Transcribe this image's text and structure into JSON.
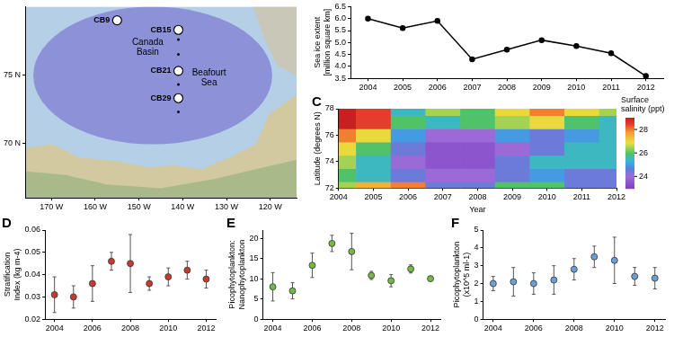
{
  "chart_data": [
    {
      "type": "map",
      "xlim": [
        -176,
        -114
      ],
      "ylim": [
        66,
        80
      ],
      "xticks": [
        {
          "value": -170,
          "label": "170 W"
        },
        {
          "value": -160,
          "label": "160 W"
        },
        {
          "value": -150,
          "label": "150 W"
        },
        {
          "value": -140,
          "label": "140 W"
        },
        {
          "value": -130,
          "label": "130 W"
        },
        {
          "value": -120,
          "label": "120 W"
        }
      ],
      "yticks": [
        {
          "value": 70,
          "label": "70 N"
        },
        {
          "value": 75,
          "label": "75 N"
        }
      ],
      "grid": false,
      "color": "#ffffff",
      "stations": [
        {
          "label": "CB9",
          "x": -155,
          "y": 79.0
        },
        {
          "label": "CB15",
          "x": -141,
          "y": 78.3
        },
        {
          "label": null,
          "x": -141,
          "y": 77.6
        },
        {
          "label": null,
          "x": -141,
          "y": 76.5
        },
        {
          "label": "CB21",
          "x": -141,
          "y": 75.3
        },
        {
          "label": null,
          "x": -141,
          "y": 74.3
        },
        {
          "label": "CB29",
          "x": -141,
          "y": 73.3
        },
        {
          "label": null,
          "x": -141,
          "y": 72.3
        }
      ],
      "annotations": [
        {
          "text": "Canada Basin",
          "x": -148,
          "y": 77.0
        },
        {
          "text": "Beafourt Sea",
          "x": -134,
          "y": 74.8
        }
      ]
    },
    {
      "type": "line",
      "x": [
        2004,
        2005,
        2006,
        2007,
        2008,
        2009,
        2010,
        2011,
        2012
      ],
      "values": [
        6.0,
        5.6,
        5.9,
        4.3,
        4.7,
        5.1,
        4.85,
        4.55,
        3.6
      ],
      "color": "#000000",
      "marker": "circle",
      "ylabel": "Sea ice extent [million square km]",
      "xlim": [
        2003.5,
        2012.5
      ],
      "xticks": [
        2004,
        2005,
        2006,
        2007,
        2008,
        2009,
        2010,
        2011,
        2012
      ],
      "ylim": [
        3.5,
        6.5
      ],
      "yticks": [
        3.5,
        {
          "value": 4,
          "label": "4.0"
        },
        4.5,
        {
          "value": 5,
          "label": "5.0"
        },
        5.5,
        {
          "value": 6,
          "label": "6.0"
        },
        6.5
      ],
      "grid": false
    },
    {
      "type": "heatmap",
      "panel_label": "C",
      "x": [
        2004,
        2005,
        2006,
        2007,
        2008,
        2009,
        2010,
        2011,
        2012
      ],
      "y": [
        72,
        73,
        74,
        75,
        76,
        77,
        78
      ],
      "cells": [
        [
          26.5,
          27.5,
          28.0,
          24.5,
          24.5,
          26.0,
          26.0,
          24.5,
          24.5
        ],
        [
          26.0,
          25.5,
          24.5,
          24.0,
          24.0,
          24.5,
          25.0,
          24.5,
          24.5
        ],
        [
          26.5,
          25.5,
          24.0,
          23.5,
          23.5,
          24.5,
          25.5,
          25.5,
          25.5
        ],
        [
          27.0,
          26.0,
          24.5,
          23.5,
          23.5,
          24.0,
          24.5,
          25.5,
          25.5
        ],
        [
          28.0,
          27.0,
          25.0,
          24.0,
          24.0,
          25.0,
          24.5,
          25.0,
          25.5
        ],
        [
          29.0,
          28.5,
          26.0,
          25.5,
          26.0,
          26.5,
          27.0,
          26.0,
          25.5
        ],
        [
          29.0,
          28.5,
          25.5,
          26.5,
          26.0,
          27.0,
          28.0,
          27.0,
          26.5
        ]
      ],
      "xlabel": "Year",
      "ylabel": "Latitude (degrees N)",
      "xlim": [
        2004,
        2012
      ],
      "xticks": [
        2004,
        2005,
        2006,
        2007,
        2008,
        2009,
        2010,
        2011,
        2012
      ],
      "ylim": [
        72,
        78
      ],
      "yticks": [
        72,
        74,
        76,
        78
      ],
      "grid": false,
      "colorbar": {
        "title": "Surface salinity (ppt)",
        "range": [
          23,
          29
        ],
        "ticks": [
          24,
          26,
          28
        ]
      }
    },
    {
      "type": "scatter",
      "panel_label": "D",
      "x": [
        2004,
        2005,
        2006,
        2007,
        2008,
        2009,
        2010,
        2011,
        2012
      ],
      "values": [
        0.031,
        0.03,
        0.036,
        0.046,
        0.045,
        0.036,
        0.039,
        0.042,
        0.038
      ],
      "errors": [
        0.008,
        0.005,
        0.008,
        0.004,
        0.013,
        0.003,
        0.004,
        0.004,
        0.004
      ],
      "color": "#c8392f",
      "marker": "circle",
      "ylabel": "Stratification Index (kg m-4)",
      "xlim": [
        2003.5,
        2012.5
      ],
      "xticks": [
        2004,
        2006,
        2008,
        2010,
        2012
      ],
      "ylim": [
        0.02,
        0.06
      ],
      "yticks": [
        0.02,
        0.03,
        0.04,
        0.05,
        0.06
      ],
      "grid": false
    },
    {
      "type": "scatter",
      "panel_label": "E",
      "x": [
        2004,
        2005,
        2006,
        2007,
        2008,
        2009,
        2010,
        2011,
        2012
      ],
      "values": [
        8.0,
        7.0,
        13.3,
        18.7,
        16.7,
        10.8,
        9.5,
        12.4,
        10.0
      ],
      "errors": [
        3.5,
        2.0,
        3.0,
        2.0,
        4.5,
        1.0,
        1.5,
        1.0,
        0.5
      ],
      "color": "#74b845",
      "marker": "circle",
      "ylabel": "Picophytoplankton: Nanophytoplankton",
      "xlim": [
        2003.5,
        2012.5
      ],
      "xticks": [
        2004,
        2006,
        2008,
        2010,
        2012
      ],
      "ylim": [
        0,
        22
      ],
      "yticks": [
        0,
        5,
        10,
        15,
        20
      ],
      "grid": false
    },
    {
      "type": "scatter",
      "panel_label": "F",
      "x": [
        2004,
        2005,
        2006,
        2007,
        2008,
        2009,
        2010,
        2011,
        2012
      ],
      "values": [
        2.0,
        2.1,
        2.0,
        2.2,
        2.8,
        3.5,
        3.3,
        2.4,
        2.3
      ],
      "errors": [
        0.4,
        0.8,
        0.6,
        0.8,
        0.6,
        0.6,
        1.3,
        0.5,
        0.6
      ],
      "color": "#6a9fd8",
      "marker": "circle",
      "ylabel": "Picophytoplankton (x10^5 ml-1)",
      "xlim": [
        2003.5,
        2012.5
      ],
      "xticks": [
        2004,
        2006,
        2008,
        2010,
        2012
      ],
      "ylim": [
        0,
        5
      ],
      "yticks": [
        0,
        1,
        2,
        3,
        4,
        5
      ],
      "grid": false
    }
  ]
}
